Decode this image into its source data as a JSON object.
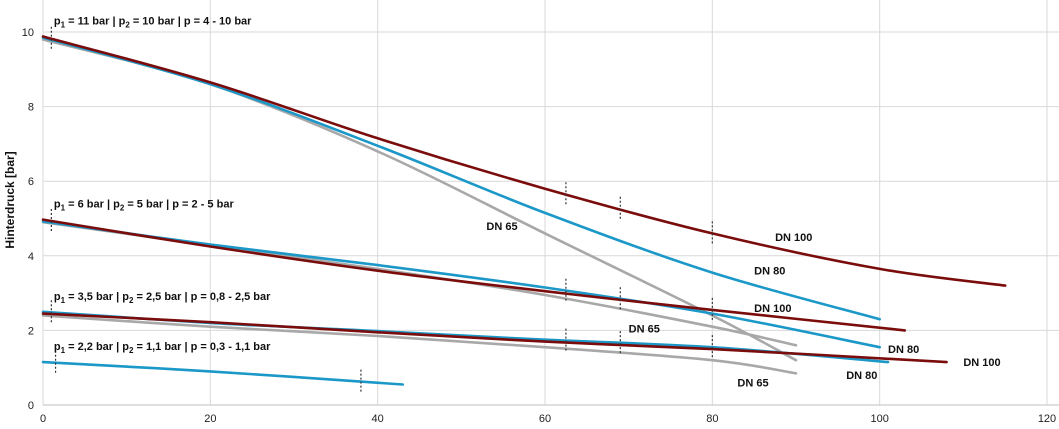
{
  "chart_data": {
    "type": "line",
    "title": "",
    "xlabel": "",
    "ylabel": "Hinterdruck [bar]",
    "xlim": [
      0,
      120
    ],
    "ylim": [
      0,
      10
    ],
    "xticks": [
      0,
      20,
      40,
      60,
      80,
      100,
      120
    ],
    "yticks": [
      0,
      2,
      4,
      6,
      8,
      10
    ],
    "grid": true,
    "colors": {
      "DN 100": "#7a0c0c",
      "DN 80": "#1b98c8",
      "DN 65": "#a8a8a8"
    },
    "groups": [
      {
        "label_parts": [
          "p",
          "1",
          " = 11 bar | p",
          "2",
          " = 10 bar | p = 4 - 10 bar"
        ],
        "series": [
          {
            "name": "DN 100",
            "x": [
              0,
              20,
              40,
              60,
              80,
              100,
              115
            ],
            "y": [
              9.88,
              8.65,
              7.15,
              5.8,
              4.6,
              3.65,
              3.2
            ]
          },
          {
            "name": "DN 80",
            "x": [
              0,
              20,
              40,
              60,
              80,
              100
            ],
            "y": [
              9.85,
              8.6,
              6.95,
              5.15,
              3.55,
              2.3
            ]
          },
          {
            "name": "DN 65",
            "x": [
              0,
              20,
              40,
              60,
              80,
              90
            ],
            "y": [
              9.8,
              8.6,
              6.8,
              4.6,
              2.4,
              1.2
            ]
          }
        ],
        "markers": [
          1,
          62.5,
          69,
          80
        ],
        "annotations": [
          {
            "text": "DN 100",
            "x": 87.5,
            "y": 4.5
          },
          {
            "text": "DN 80",
            "x": 85,
            "y": 3.6
          },
          {
            "text": "DN 65",
            "x": 53,
            "y": 4.8
          }
        ]
      },
      {
        "label_parts": [
          "p",
          "1",
          " = 6 bar | p",
          "2",
          " = 5 bar | p = 2 - 5 bar"
        ],
        "series": [
          {
            "name": "DN 100",
            "x": [
              0,
              20,
              40,
              60,
              80,
              103
            ],
            "y": [
              4.97,
              4.25,
              3.6,
              3.05,
              2.55,
              2.0
            ]
          },
          {
            "name": "DN 80",
            "x": [
              0,
              20,
              40,
              60,
              80,
              100
            ],
            "y": [
              4.92,
              4.3,
              3.75,
              3.15,
              2.45,
              1.55
            ]
          },
          {
            "name": "DN 65",
            "x": [
              0,
              20,
              40,
              60,
              80,
              90
            ],
            "y": [
              4.9,
              4.28,
              3.65,
              2.95,
              2.1,
              1.6
            ]
          }
        ],
        "markers": [
          1,
          62.5,
          69,
          80
        ],
        "annotations": [
          {
            "text": "DN 100",
            "x": 85,
            "y": 2.6
          },
          {
            "text": "DN 80",
            "x": 101,
            "y": 1.5
          },
          {
            "text": "DN 65",
            "x": 70,
            "y": 2.05
          }
        ]
      },
      {
        "label_parts": [
          "p",
          "1",
          " = 3,5 bar | p",
          "2",
          " = 2,5 bar | p = 0,8 - 2,5 bar"
        ],
        "series": [
          {
            "name": "DN 100",
            "x": [
              0,
              20,
              40,
              60,
              80,
              108
            ],
            "y": [
              2.45,
              2.22,
              1.95,
              1.7,
              1.5,
              1.15
            ]
          },
          {
            "name": "DN 80",
            "x": [
              0,
              20,
              40,
              60,
              80,
              101
            ],
            "y": [
              2.5,
              2.2,
              1.98,
              1.75,
              1.55,
              1.15
            ]
          },
          {
            "name": "DN 65",
            "x": [
              0,
              20,
              40,
              60,
              80,
              90
            ],
            "y": [
              2.4,
              2.1,
              1.85,
              1.55,
              1.2,
              0.85
            ]
          }
        ],
        "markers": [
          1,
          62.5,
          69,
          80
        ],
        "annotations": [
          {
            "text": "DN 100",
            "x": 110,
            "y": 1.15
          },
          {
            "text": "DN 80",
            "x": 96,
            "y": 0.8
          },
          {
            "text": "DN 65",
            "x": 83,
            "y": 0.6
          }
        ]
      },
      {
        "label_parts": [
          "p",
          "1",
          " = 2,2 bar | p",
          "2",
          " = 1,1 bar | p = 0,3 - 1,1 bar"
        ],
        "series": [
          {
            "name": "DN 80",
            "x": [
              0,
              20,
              43
            ],
            "y": [
              1.15,
              0.9,
              0.55
            ]
          }
        ],
        "markers": [
          1.5,
          38
        ],
        "annotations": []
      }
    ]
  }
}
